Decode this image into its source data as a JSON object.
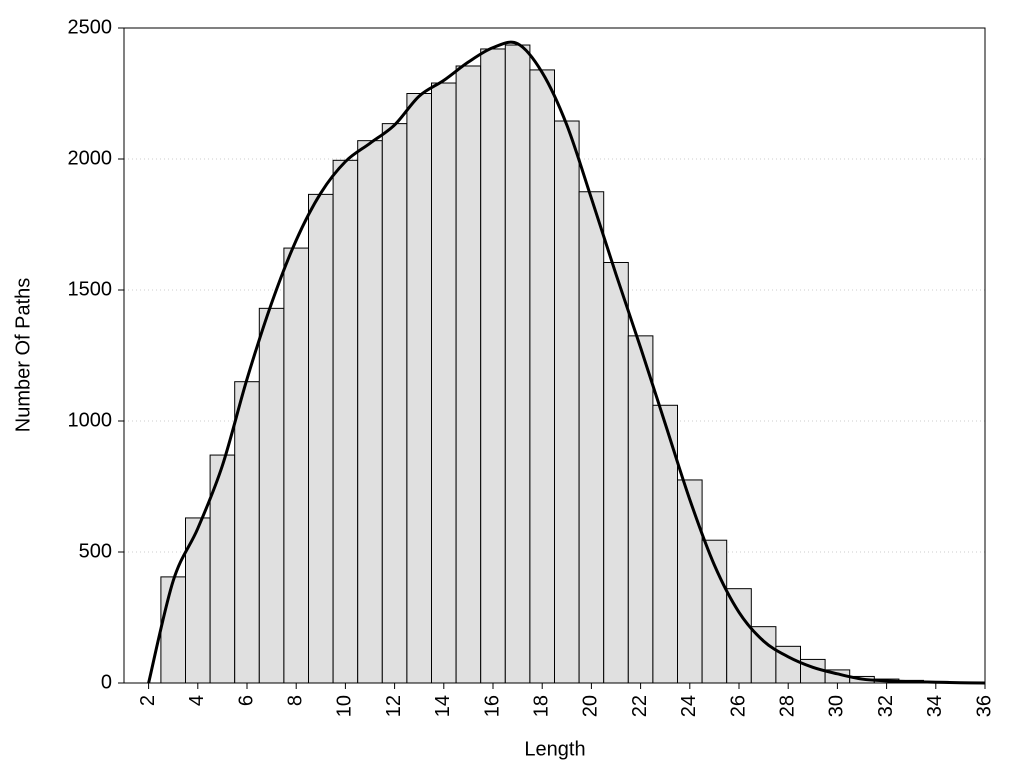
{
  "chart_data": {
    "type": "histogram",
    "xlabel": "Length",
    "ylabel": "Number Of Paths",
    "bins": [
      2.5,
      3.5,
      4.5,
      5.5,
      6.5,
      7.5,
      8.5,
      9.5,
      10.5,
      11.5,
      12.5,
      13.5,
      14.5,
      15.5,
      16.5,
      17.5,
      18.5,
      19.5,
      20.5,
      21.5,
      22.5,
      23.5,
      24.5,
      25.5,
      26.5,
      27.5,
      28.5,
      29.5,
      30.5,
      31.5,
      32.5,
      33.5,
      34.5,
      35.5
    ],
    "values": [
      405,
      630,
      870,
      1150,
      1430,
      1660,
      1865,
      1995,
      2070,
      2135,
      2250,
      2290,
      2355,
      2420,
      2435,
      2340,
      2145,
      1875,
      1605,
      1325,
      1060,
      775,
      545,
      360,
      215,
      140,
      90,
      50,
      25,
      15,
      10,
      6,
      3
    ],
    "color": "#e0e0e0",
    "curve": {
      "color": "#000000",
      "x": [
        2,
        3,
        4,
        5,
        6,
        7,
        8,
        9,
        10,
        11,
        12,
        13,
        14,
        15,
        16,
        17,
        18,
        19,
        20,
        21,
        22,
        23,
        24,
        25,
        26,
        27,
        28,
        29,
        30,
        31,
        32,
        33,
        34,
        35,
        36
      ],
      "values": [
        0,
        390,
        590,
        830,
        1160,
        1450,
        1690,
        1870,
        1990,
        2060,
        2130,
        2240,
        2300,
        2370,
        2425,
        2440,
        2330,
        2130,
        1850,
        1560,
        1280,
        990,
        700,
        450,
        270,
        160,
        100,
        60,
        35,
        15,
        8,
        5,
        3,
        1,
        0
      ]
    },
    "xlim": [
      1,
      36
    ],
    "xticks": [
      2,
      4,
      6,
      8,
      10,
      12,
      14,
      16,
      18,
      20,
      22,
      24,
      26,
      28,
      30,
      32,
      34,
      36
    ],
    "ylim": [
      0,
      2500
    ],
    "yticks": [
      0,
      500,
      1000,
      1500,
      2000,
      2500
    ],
    "grid": true
  }
}
